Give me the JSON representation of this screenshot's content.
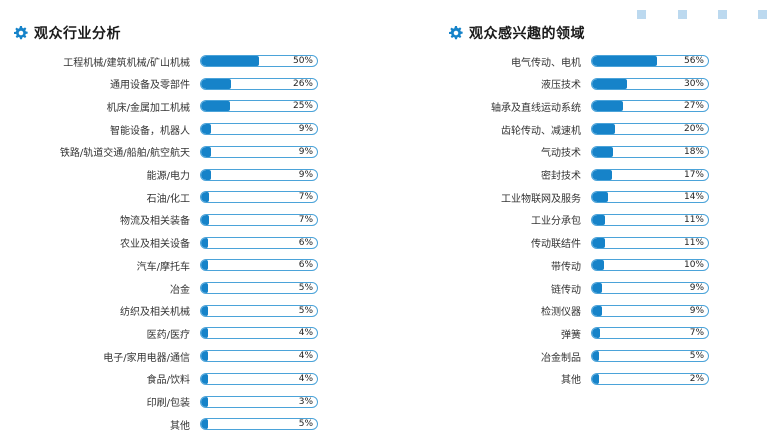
{
  "decorations": {
    "squares_color": "#bcd9ef"
  },
  "colors": {
    "bar_fill": "#1683c9",
    "bar_border": "#4ba3d9",
    "gear": "#1683c9"
  },
  "left_panel": {
    "title": "观众行业分析",
    "icon": "gear-icon",
    "chart_data": {
      "type": "bar",
      "orientation": "horizontal",
      "title": "观众行业分析",
      "categories": [
        "工程机械/建筑机械/矿山机械",
        "通用设备及零部件",
        "机床/金属加工机械",
        "智能设备，机器人",
        "铁路/轨道交通/船舶/航空航天",
        "能源/电力",
        "石油/化工",
        "物流及相关装备",
        "农业及相关设备",
        "汽车/摩托车",
        "冶金",
        "纺织及相关机械",
        "医药/医疗",
        "电子/家用电器/通信",
        "食品/饮料",
        "印刷/包装",
        "其他"
      ],
      "values": [
        50,
        26,
        25,
        9,
        9,
        9,
        7,
        7,
        6,
        6,
        5,
        5,
        4,
        4,
        4,
        3,
        5
      ],
      "labels": [
        "50%",
        "26%",
        "25%",
        "9%",
        "9%",
        "9%",
        "7%",
        "7%",
        "6%",
        "6%",
        "5%",
        "5%",
        "4%",
        "4%",
        "4%",
        "3%",
        "5%"
      ],
      "xlim": [
        0,
        100
      ],
      "unit": "%"
    }
  },
  "right_panel": {
    "title": "观众感兴趣的领域",
    "icon": "gear-icon",
    "chart_data": {
      "type": "bar",
      "orientation": "horizontal",
      "title": "观众感兴趣的领域",
      "categories": [
        "电气传动、电机",
        "液压技术",
        "轴承及直线运动系统",
        "齿轮传动、减速机",
        "气动技术",
        "密封技术",
        "工业物联网及服务",
        "工业分承包",
        "传动联结件",
        "带传动",
        "链传动",
        "检测仪器",
        "弹簧",
        "冶金制品",
        "其他"
      ],
      "values": [
        56,
        30,
        27,
        20,
        18,
        17,
        14,
        11,
        11,
        10,
        9,
        9,
        7,
        5,
        2
      ],
      "labels": [
        "56%",
        "30%",
        "27%",
        "20%",
        "18%",
        "17%",
        "14%",
        "11%",
        "11%",
        "10%",
        "9%",
        "9%",
        "7%",
        "5%",
        "2%"
      ],
      "xlim": [
        0,
        100
      ],
      "unit": "%"
    }
  }
}
